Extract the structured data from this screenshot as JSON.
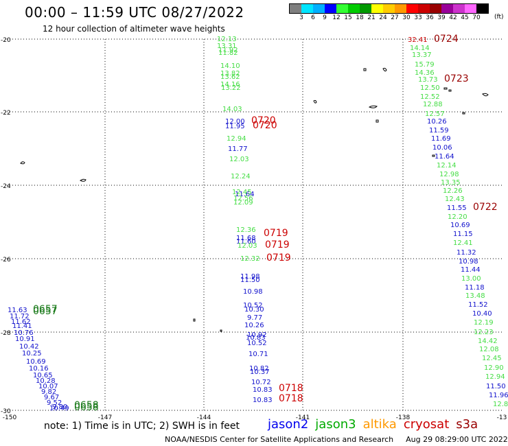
{
  "header": {
    "title": "00:00 – 11:59 UTC 08/27/2022",
    "subtitle": "12 hour collection of altimeter wave heights"
  },
  "legend": {
    "unit": "(ft)",
    "colors": [
      "#7f7f7f",
      "#00e5ff",
      "#00b0ff",
      "#0000ff",
      "#33ff33",
      "#00cc00",
      "#009900",
      "#ffff00",
      "#ffcc00",
      "#ff9900",
      "#ff0000",
      "#cc0000",
      "#990000",
      "#990099",
      "#cc33cc",
      "#ff66ff",
      "#000000"
    ],
    "labels": [
      "3",
      "6",
      "9",
      "12",
      "15",
      "18",
      "21",
      "24",
      "27",
      "30",
      "33",
      "36",
      "39",
      "42",
      "45",
      "70"
    ]
  },
  "map": {
    "lon_ticks": [
      "-150",
      "-147",
      "-144",
      "-141",
      "-138",
      "-13"
    ],
    "lat_ticks": [
      "-20",
      "-22",
      "-24",
      "-26",
      "-28",
      "-30"
    ],
    "satellite_colors": {
      "jason2": "#1010cc",
      "jason3": "#22aa22",
      "jason3_label": "#1a7a1a",
      "altika": "#ff9900",
      "cryosat": "#cc0000",
      "s3a": "#990000",
      "green_light": "#44dd44"
    },
    "tracks": [
      {
        "sat": "jason3",
        "values": [
          "12.13",
          "13.31",
          "11.92",
          "11.82",
          "14.10",
          "13.82",
          "13.62",
          "14.16",
          "13.22",
          "14.03"
        ]
      },
      {
        "sat": "jason2",
        "values": [
          "12.00",
          "11.95",
          "11.77",
          "11.64",
          "11.68",
          "11.60",
          "11.98",
          "11.50",
          "10.98",
          "10.52",
          "10.30",
          "9.77",
          "10.26",
          "10.92",
          "10.83",
          "10.52",
          "10.71",
          "10.82",
          "10.37",
          "10.72",
          "10.83",
          "10.83"
        ]
      },
      {
        "sat": "jason3",
        "values": [
          "12.94",
          "12.03",
          "12.24",
          "12.45",
          "12.56",
          "12.09",
          "12.36",
          "12.03",
          "12.32"
        ]
      },
      {
        "sat": "cryosat",
        "values": [
          "0720",
          "0720",
          "0719",
          "0719",
          "0719",
          "0718",
          "0718"
        ]
      },
      {
        "sat": "s3a",
        "values": [
          "0724",
          "0723",
          "0722",
          "32.41"
        ]
      },
      {
        "sat": "jason3",
        "values": [
          "14.14",
          "13.37",
          "15.79",
          "14.36",
          "13.73",
          "12.50",
          "12.52",
          "12.88",
          "12.57",
          "12.14",
          "12.98",
          "13.35",
          "12.26",
          "12.43",
          "12.20",
          "12.41",
          "13.00",
          "13.48",
          "12.19",
          "12.23",
          "14.42",
          "12.08",
          "12.45",
          "12.90",
          "12.94",
          "12.89"
        ]
      },
      {
        "sat": "jason2",
        "values": [
          "10.26",
          "11.59",
          "11.69",
          "10.06",
          "11.64",
          "11.55",
          "10.69",
          "11.15",
          "11.32",
          "10.98",
          "11.44",
          "11.18",
          "11.52",
          "10.40",
          "11.50",
          "11.96"
        ]
      },
      {
        "sat": "jason2",
        "values": [
          "11.63",
          "11.72",
          "11.62",
          "11.41",
          "10.76",
          "10.91",
          "10.42",
          "10.25",
          "10.69",
          "10.16",
          "10.65",
          "10.28",
          "10.07",
          "9.82",
          "9.67",
          "9.52",
          "10.49",
          "9.80"
        ]
      },
      {
        "sat": "jason3",
        "values": [
          "0657",
          "0657",
          "0658",
          "0658"
        ]
      }
    ]
  },
  "footer": {
    "note": "note: 1) Time is in UTC; 2) SWH is in feet",
    "satellites": [
      {
        "name": "jason2",
        "color": "#0000ee"
      },
      {
        "name": "jason3",
        "color": "#00aa00"
      },
      {
        "name": "altika",
        "color": "#ff9900"
      },
      {
        "name": "cryosat",
        "color": "#cc0000"
      },
      {
        "name": "s3a",
        "color": "#990000"
      }
    ],
    "credit": "NOAA/NESDIS Center for Satellite Applications and Research",
    "timestamp": "Aug 29 08:29:00 UTC 2022"
  }
}
